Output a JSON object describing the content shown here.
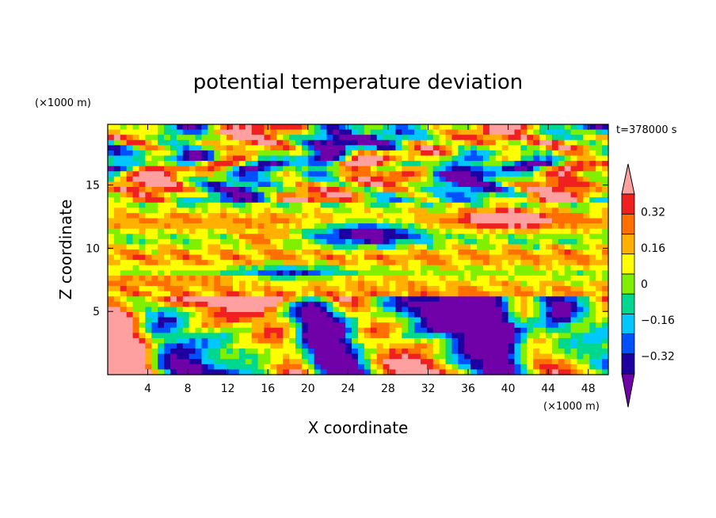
{
  "chart_data": {
    "type": "heatmap",
    "title": "potential temperature deviation",
    "xlabel": "X coordinate",
    "ylabel": "Z coordinate",
    "x_unit": "(×1000 m)",
    "y_unit": "(×1000 m)",
    "time_label": "t=378000 s",
    "xlim": [
      0,
      50
    ],
    "ylim": [
      0,
      19.8
    ],
    "x_ticks": [
      4,
      8,
      12,
      16,
      20,
      24,
      28,
      32,
      36,
      40,
      44,
      48
    ],
    "y_ticks": [
      5,
      10,
      15
    ],
    "colorbar": {
      "levels": [
        -0.4,
        -0.32,
        -0.24,
        -0.16,
        -0.08,
        0,
        0.08,
        0.16,
        0.24,
        0.32,
        0.4
      ],
      "labels": [
        "0.32",
        "0.16",
        "0",
        "−0.16",
        "−0.32"
      ],
      "label_values": [
        0.32,
        0.16,
        0,
        -0.16,
        -0.32
      ],
      "colors": [
        "#7000a8",
        "#1e00a0",
        "#0050ff",
        "#00c8ff",
        "#00d890",
        "#80f000",
        "#ffff00",
        "#ffb000",
        "#ff7000",
        "#f02020",
        "#ffa0a0"
      ],
      "extend": "both"
    }
  }
}
